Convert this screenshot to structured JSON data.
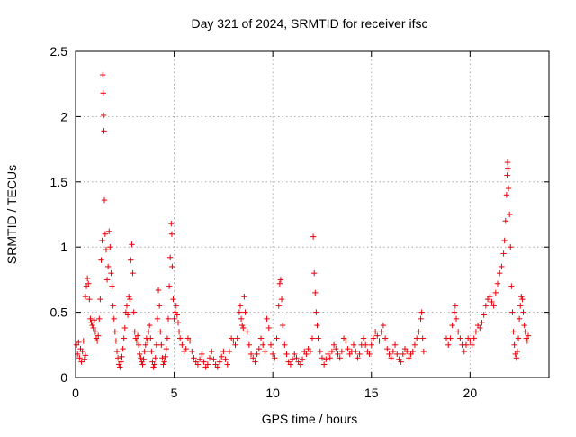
{
  "chart_data": {
    "type": "scatter",
    "title": "Day 321 of 2024, SRMTID for receiver ifsc",
    "xlabel": "GPS time / hours",
    "ylabel": "SRMTID / TECUs",
    "xlim": [
      0,
      24
    ],
    "ylim": [
      0,
      2.5
    ],
    "xticks": [
      0,
      5,
      10,
      15,
      20
    ],
    "xtick_labels": [
      "0",
      "5",
      "10",
      "15",
      "20"
    ],
    "yticks": [
      0,
      0.5,
      1,
      1.5,
      2,
      2.5
    ],
    "ytick_labels": [
      "0",
      "0.5",
      "1",
      "1.5",
      "2",
      "2.5"
    ],
    "grid": true,
    "marker": "+",
    "series_color": "#e8000b",
    "series": [
      {
        "name": "SRMTID",
        "points": [
          [
            0.05,
            0.25
          ],
          [
            0.1,
            0.18
          ],
          [
            0.15,
            0.27
          ],
          [
            0.2,
            0.15
          ],
          [
            0.25,
            0.22
          ],
          [
            0.3,
            0.12
          ],
          [
            0.35,
            0.2
          ],
          [
            0.4,
            0.28
          ],
          [
            0.45,
            0.14
          ],
          [
            0.5,
            0.17
          ],
          [
            0.5,
            0.62
          ],
          [
            0.55,
            0.7
          ],
          [
            0.6,
            0.76
          ],
          [
            0.65,
            0.72
          ],
          [
            0.7,
            0.6
          ],
          [
            0.75,
            0.45
          ],
          [
            0.8,
            0.42
          ],
          [
            0.85,
            0.4
          ],
          [
            0.9,
            0.38
          ],
          [
            0.95,
            0.44
          ],
          [
            1.0,
            0.35
          ],
          [
            1.05,
            0.3
          ],
          [
            1.1,
            0.28
          ],
          [
            1.15,
            0.32
          ],
          [
            1.2,
            0.45
          ],
          [
            1.25,
            0.6
          ],
          [
            1.3,
            0.9
          ],
          [
            1.35,
            1.05
          ],
          [
            1.38,
            2.32
          ],
          [
            1.4,
            2.18
          ],
          [
            1.42,
            2.01
          ],
          [
            1.44,
            1.89
          ],
          [
            1.46,
            1.36
          ],
          [
            1.5,
            1.1
          ],
          [
            1.55,
            0.98
          ],
          [
            1.6,
            0.75
          ],
          [
            1.65,
            0.85
          ],
          [
            1.7,
            1.12
          ],
          [
            1.75,
            1.0
          ],
          [
            1.8,
            0.8
          ],
          [
            1.85,
            0.7
          ],
          [
            1.9,
            0.55
          ],
          [
            1.95,
            0.45
          ],
          [
            2.0,
            0.35
          ],
          [
            2.05,
            0.28
          ],
          [
            2.1,
            0.2
          ],
          [
            2.15,
            0.15
          ],
          [
            2.2,
            0.1
          ],
          [
            2.25,
            0.08
          ],
          [
            2.3,
            0.12
          ],
          [
            2.35,
            0.16
          ],
          [
            2.4,
            0.22
          ],
          [
            2.45,
            0.3
          ],
          [
            2.5,
            0.38
          ],
          [
            2.55,
            0.5
          ],
          [
            2.6,
            0.55
          ],
          [
            2.65,
            0.48
          ],
          [
            2.7,
            0.62
          ],
          [
            2.75,
            0.6
          ],
          [
            2.8,
            0.9
          ],
          [
            2.85,
            1.02
          ],
          [
            2.9,
            0.8
          ],
          [
            2.95,
            0.5
          ],
          [
            3.0,
            0.35
          ],
          [
            3.05,
            0.3
          ],
          [
            3.1,
            0.28
          ],
          [
            3.15,
            0.32
          ],
          [
            3.2,
            0.25
          ],
          [
            3.25,
            0.18
          ],
          [
            3.3,
            0.15
          ],
          [
            3.35,
            0.12
          ],
          [
            3.4,
            0.1
          ],
          [
            3.45,
            0.14
          ],
          [
            3.5,
            0.2
          ],
          [
            3.55,
            0.25
          ],
          [
            3.6,
            0.3
          ],
          [
            3.65,
            0.28
          ],
          [
            3.7,
            0.35
          ],
          [
            3.75,
            0.4
          ],
          [
            3.8,
            0.3
          ],
          [
            3.85,
            0.2
          ],
          [
            3.9,
            0.12
          ],
          [
            3.95,
            0.08
          ],
          [
            4.0,
            0.1
          ],
          [
            4.05,
            0.15
          ],
          [
            4.1,
            0.25
          ],
          [
            4.15,
            0.45
          ],
          [
            4.2,
            0.67
          ],
          [
            4.25,
            0.55
          ],
          [
            4.3,
            0.35
          ],
          [
            4.35,
            0.25
          ],
          [
            4.4,
            0.15
          ],
          [
            4.45,
            0.1
          ],
          [
            4.5,
            0.12
          ],
          [
            4.55,
            0.16
          ],
          [
            4.6,
            0.22
          ],
          [
            4.65,
            0.3
          ],
          [
            4.7,
            0.45
          ],
          [
            4.75,
            0.7
          ],
          [
            4.8,
            0.92
          ],
          [
            4.85,
            1.18
          ],
          [
            4.88,
            1.1
          ],
          [
            4.9,
            0.85
          ],
          [
            4.95,
            0.6
          ],
          [
            5.0,
            0.45
          ],
          [
            5.05,
            0.5
          ],
          [
            5.1,
            0.55
          ],
          [
            5.15,
            0.48
          ],
          [
            5.2,
            0.42
          ],
          [
            5.25,
            0.35
          ],
          [
            5.3,
            0.3
          ],
          [
            5.4,
            0.25
          ],
          [
            5.5,
            0.2
          ],
          [
            5.6,
            0.22
          ],
          [
            5.7,
            0.3
          ],
          [
            5.8,
            0.28
          ],
          [
            5.9,
            0.2
          ],
          [
            6.0,
            0.15
          ],
          [
            6.1,
            0.12
          ],
          [
            6.2,
            0.1
          ],
          [
            6.3,
            0.14
          ],
          [
            6.4,
            0.18
          ],
          [
            6.5,
            0.12
          ],
          [
            6.6,
            0.08
          ],
          [
            6.7,
            0.1
          ],
          [
            6.8,
            0.15
          ],
          [
            6.9,
            0.2
          ],
          [
            7.0,
            0.14
          ],
          [
            7.1,
            0.1
          ],
          [
            7.2,
            0.08
          ],
          [
            7.3,
            0.12
          ],
          [
            7.4,
            0.16
          ],
          [
            7.5,
            0.2
          ],
          [
            7.6,
            0.14
          ],
          [
            7.7,
            0.1
          ],
          [
            7.8,
            0.2
          ],
          [
            7.9,
            0.3
          ],
          [
            8.0,
            0.28
          ],
          [
            8.1,
            0.25
          ],
          [
            8.2,
            0.3
          ],
          [
            8.3,
            0.5
          ],
          [
            8.35,
            0.55
          ],
          [
            8.4,
            0.45
          ],
          [
            8.45,
            0.4
          ],
          [
            8.5,
            0.38
          ],
          [
            8.55,
            0.62
          ],
          [
            8.6,
            0.5
          ],
          [
            8.7,
            0.35
          ],
          [
            8.8,
            0.25
          ],
          [
            8.9,
            0.18
          ],
          [
            9.0,
            0.15
          ],
          [
            9.1,
            0.12
          ],
          [
            9.2,
            0.18
          ],
          [
            9.3,
            0.22
          ],
          [
            9.4,
            0.3
          ],
          [
            9.5,
            0.25
          ],
          [
            9.6,
            0.2
          ],
          [
            9.7,
            0.45
          ],
          [
            9.8,
            0.38
          ],
          [
            9.9,
            0.25
          ],
          [
            10.0,
            0.18
          ],
          [
            10.1,
            0.15
          ],
          [
            10.2,
            0.3
          ],
          [
            10.3,
            0.55
          ],
          [
            10.35,
            0.72
          ],
          [
            10.4,
            0.75
          ],
          [
            10.45,
            0.6
          ],
          [
            10.5,
            0.4
          ],
          [
            10.6,
            0.25
          ],
          [
            10.7,
            0.18
          ],
          [
            10.8,
            0.12
          ],
          [
            10.9,
            0.1
          ],
          [
            11.0,
            0.14
          ],
          [
            11.1,
            0.18
          ],
          [
            11.2,
            0.15
          ],
          [
            11.3,
            0.12
          ],
          [
            11.4,
            0.1
          ],
          [
            11.5,
            0.14
          ],
          [
            11.6,
            0.2
          ],
          [
            11.7,
            0.18
          ],
          [
            11.8,
            0.22
          ],
          [
            11.9,
            0.2
          ],
          [
            12.0,
            0.3
          ],
          [
            12.05,
            1.08
          ],
          [
            12.1,
            0.8
          ],
          [
            12.15,
            0.65
          ],
          [
            12.2,
            0.5
          ],
          [
            12.25,
            0.4
          ],
          [
            12.3,
            0.3
          ],
          [
            12.4,
            0.2
          ],
          [
            12.5,
            0.15
          ],
          [
            12.6,
            0.1
          ],
          [
            12.7,
            0.14
          ],
          [
            12.8,
            0.18
          ],
          [
            12.9,
            0.15
          ],
          [
            13.0,
            0.2
          ],
          [
            13.1,
            0.25
          ],
          [
            13.2,
            0.22
          ],
          [
            13.3,
            0.18
          ],
          [
            13.4,
            0.15
          ],
          [
            13.5,
            0.2
          ],
          [
            13.6,
            0.3
          ],
          [
            13.7,
            0.28
          ],
          [
            13.8,
            0.22
          ],
          [
            13.9,
            0.18
          ],
          [
            14.0,
            0.2
          ],
          [
            14.1,
            0.25
          ],
          [
            14.2,
            0.2
          ],
          [
            14.3,
            0.15
          ],
          [
            14.4,
            0.18
          ],
          [
            14.5,
            0.25
          ],
          [
            14.6,
            0.3
          ],
          [
            14.7,
            0.25
          ],
          [
            14.8,
            0.2
          ],
          [
            14.9,
            0.18
          ],
          [
            15.0,
            0.25
          ],
          [
            15.1,
            0.3
          ],
          [
            15.2,
            0.35
          ],
          [
            15.3,
            0.32
          ],
          [
            15.4,
            0.28
          ],
          [
            15.5,
            0.35
          ],
          [
            15.6,
            0.4
          ],
          [
            15.7,
            0.3
          ],
          [
            15.8,
            0.22
          ],
          [
            15.9,
            0.18
          ],
          [
            16.0,
            0.15
          ],
          [
            16.1,
            0.2
          ],
          [
            16.2,
            0.25
          ],
          [
            16.3,
            0.18
          ],
          [
            16.4,
            0.14
          ],
          [
            16.5,
            0.12
          ],
          [
            16.6,
            0.18
          ],
          [
            16.7,
            0.22
          ],
          [
            16.8,
            0.2
          ],
          [
            16.9,
            0.15
          ],
          [
            17.0,
            0.18
          ],
          [
            17.1,
            0.2
          ],
          [
            17.2,
            0.25
          ],
          [
            17.3,
            0.3
          ],
          [
            17.4,
            0.35
          ],
          [
            17.5,
            0.45
          ],
          [
            17.55,
            0.5
          ],
          [
            17.6,
            0.3
          ],
          [
            17.65,
            0.2
          ],
          [
            18.8,
            0.3
          ],
          [
            18.9,
            0.25
          ],
          [
            19.0,
            0.3
          ],
          [
            19.1,
            0.4
          ],
          [
            19.2,
            0.5
          ],
          [
            19.25,
            0.55
          ],
          [
            19.3,
            0.45
          ],
          [
            19.4,
            0.35
          ],
          [
            19.5,
            0.3
          ],
          [
            19.6,
            0.25
          ],
          [
            19.7,
            0.2
          ],
          [
            19.8,
            0.25
          ],
          [
            19.9,
            0.3
          ],
          [
            20.0,
            0.28
          ],
          [
            20.1,
            0.25
          ],
          [
            20.2,
            0.3
          ],
          [
            20.3,
            0.35
          ],
          [
            20.4,
            0.4
          ],
          [
            20.5,
            0.38
          ],
          [
            20.6,
            0.42
          ],
          [
            20.7,
            0.48
          ],
          [
            20.8,
            0.55
          ],
          [
            20.9,
            0.6
          ],
          [
            21.0,
            0.62
          ],
          [
            21.1,
            0.58
          ],
          [
            21.2,
            0.55
          ],
          [
            21.3,
            0.65
          ],
          [
            21.4,
            0.72
          ],
          [
            21.5,
            0.8
          ],
          [
            21.6,
            0.85
          ],
          [
            21.7,
            0.95
          ],
          [
            21.75,
            1.05
          ],
          [
            21.8,
            1.2
          ],
          [
            21.85,
            1.4
          ],
          [
            21.88,
            1.55
          ],
          [
            21.9,
            1.65
          ],
          [
            21.92,
            1.6
          ],
          [
            21.95,
            1.45
          ],
          [
            22.0,
            1.25
          ],
          [
            22.05,
            1.0
          ],
          [
            22.1,
            0.7
          ],
          [
            22.15,
            0.5
          ],
          [
            22.2,
            0.35
          ],
          [
            22.25,
            0.25
          ],
          [
            22.3,
            0.18
          ],
          [
            22.35,
            0.15
          ],
          [
            22.4,
            0.2
          ],
          [
            22.45,
            0.3
          ],
          [
            22.5,
            0.45
          ],
          [
            22.55,
            0.55
          ],
          [
            22.6,
            0.62
          ],
          [
            22.65,
            0.6
          ],
          [
            22.7,
            0.5
          ],
          [
            22.75,
            0.4
          ],
          [
            22.8,
            0.35
          ],
          [
            22.85,
            0.3
          ],
          [
            22.9,
            0.28
          ],
          [
            22.95,
            0.32
          ]
        ]
      }
    ]
  }
}
